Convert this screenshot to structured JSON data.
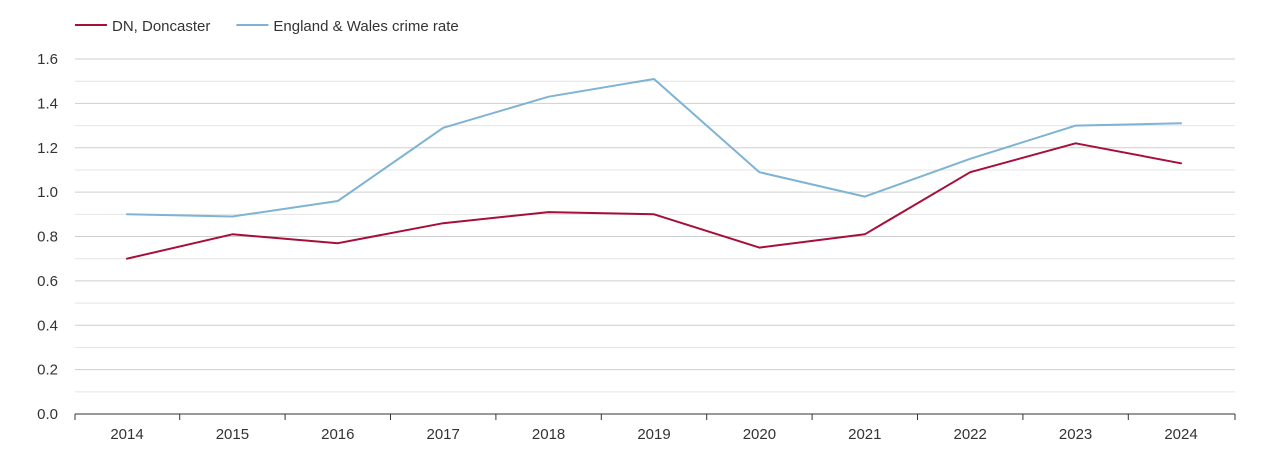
{
  "chart_data": {
    "type": "line",
    "title": "",
    "xlabel": "",
    "ylabel": "",
    "legend_position": "top-left",
    "grid": true,
    "ylim": [
      0,
      1.6
    ],
    "y_ticks": [
      "0.0",
      "0.2",
      "0.4",
      "0.6",
      "0.8",
      "1.0",
      "1.2",
      "1.4",
      "1.6"
    ],
    "categories": [
      "2014",
      "2015",
      "2016",
      "2017",
      "2018",
      "2019",
      "2020",
      "2021",
      "2022",
      "2023",
      "2024"
    ],
    "series": [
      {
        "name": "DN, Doncaster",
        "color": "#a50f3a",
        "values": [
          0.7,
          0.81,
          0.77,
          0.86,
          0.91,
          0.9,
          0.75,
          0.81,
          1.09,
          1.22,
          1.13
        ]
      },
      {
        "name": "England & Wales crime rate",
        "color": "#7eb3d4",
        "values": [
          0.9,
          0.89,
          0.96,
          1.29,
          1.43,
          1.51,
          1.09,
          0.98,
          1.15,
          1.3,
          1.31
        ]
      }
    ]
  }
}
